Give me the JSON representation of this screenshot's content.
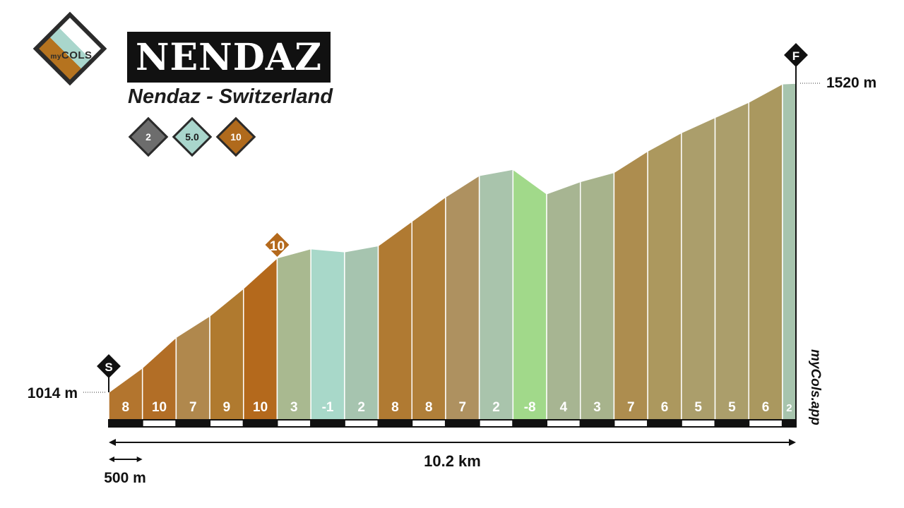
{
  "header": {
    "logo_text_small": "my",
    "logo_text_big": "COLS",
    "title": "NENDAZ",
    "subtitle": "Nendaz - Switzerland"
  },
  "stats": [
    {
      "value": "2",
      "color": "#6d6d6d",
      "text_color": "#ffffff",
      "icon": "difficulty-icon"
    },
    {
      "value": "5.0",
      "color": "#a9d6cc",
      "text_color": "#1c1c1c",
      "icon": "avg-gradient-icon"
    },
    {
      "value": "10",
      "color": "#b06a1c",
      "text_color": "#ffffff",
      "icon": "max-gradient-icon"
    }
  ],
  "chart_data": {
    "type": "area",
    "x_unit": "km",
    "y_unit": "m",
    "total_distance_label": "10.2 km",
    "scale_label": "500 m",
    "start_label": "S",
    "finish_label": "F",
    "start_altitude_label": "1014 m",
    "finish_altitude_label": "1520 m",
    "max_gradient_marker": "10",
    "watermark": "myCols.app",
    "segment_length_km": 0.5,
    "x_end_km": 10.2,
    "y_start": 1014,
    "y_end": 1520,
    "altitudes": [
      1014,
      1054,
      1104,
      1139,
      1184,
      1234,
      1249,
      1244,
      1254,
      1294,
      1334,
      1369,
      1379,
      1339,
      1359,
      1374,
      1409,
      1439,
      1464,
      1489,
      1519,
      1520
    ],
    "gradients": [
      "8",
      "10",
      "7",
      "9",
      "10",
      "3",
      "-1",
      "2",
      "8",
      "8",
      "7",
      "2",
      "-8",
      "4",
      "3",
      "7",
      "6",
      "5",
      "5",
      "6",
      "2"
    ],
    "colors": [
      "#b3752e",
      "#b26e26",
      "#b0884d",
      "#b07a2f",
      "#b4691c",
      "#a9b990",
      "#a8d8c9",
      "#a6c4af",
      "#b07a32",
      "#b07f39",
      "#ae9160",
      "#a9c4ac",
      "#a1d98a",
      "#a7b592",
      "#a7b38c",
      "#ad8d4f",
      "#ac985e",
      "#ab9e6b",
      "#ab9e6b",
      "#aa985f",
      "#a7c4ad"
    ]
  }
}
